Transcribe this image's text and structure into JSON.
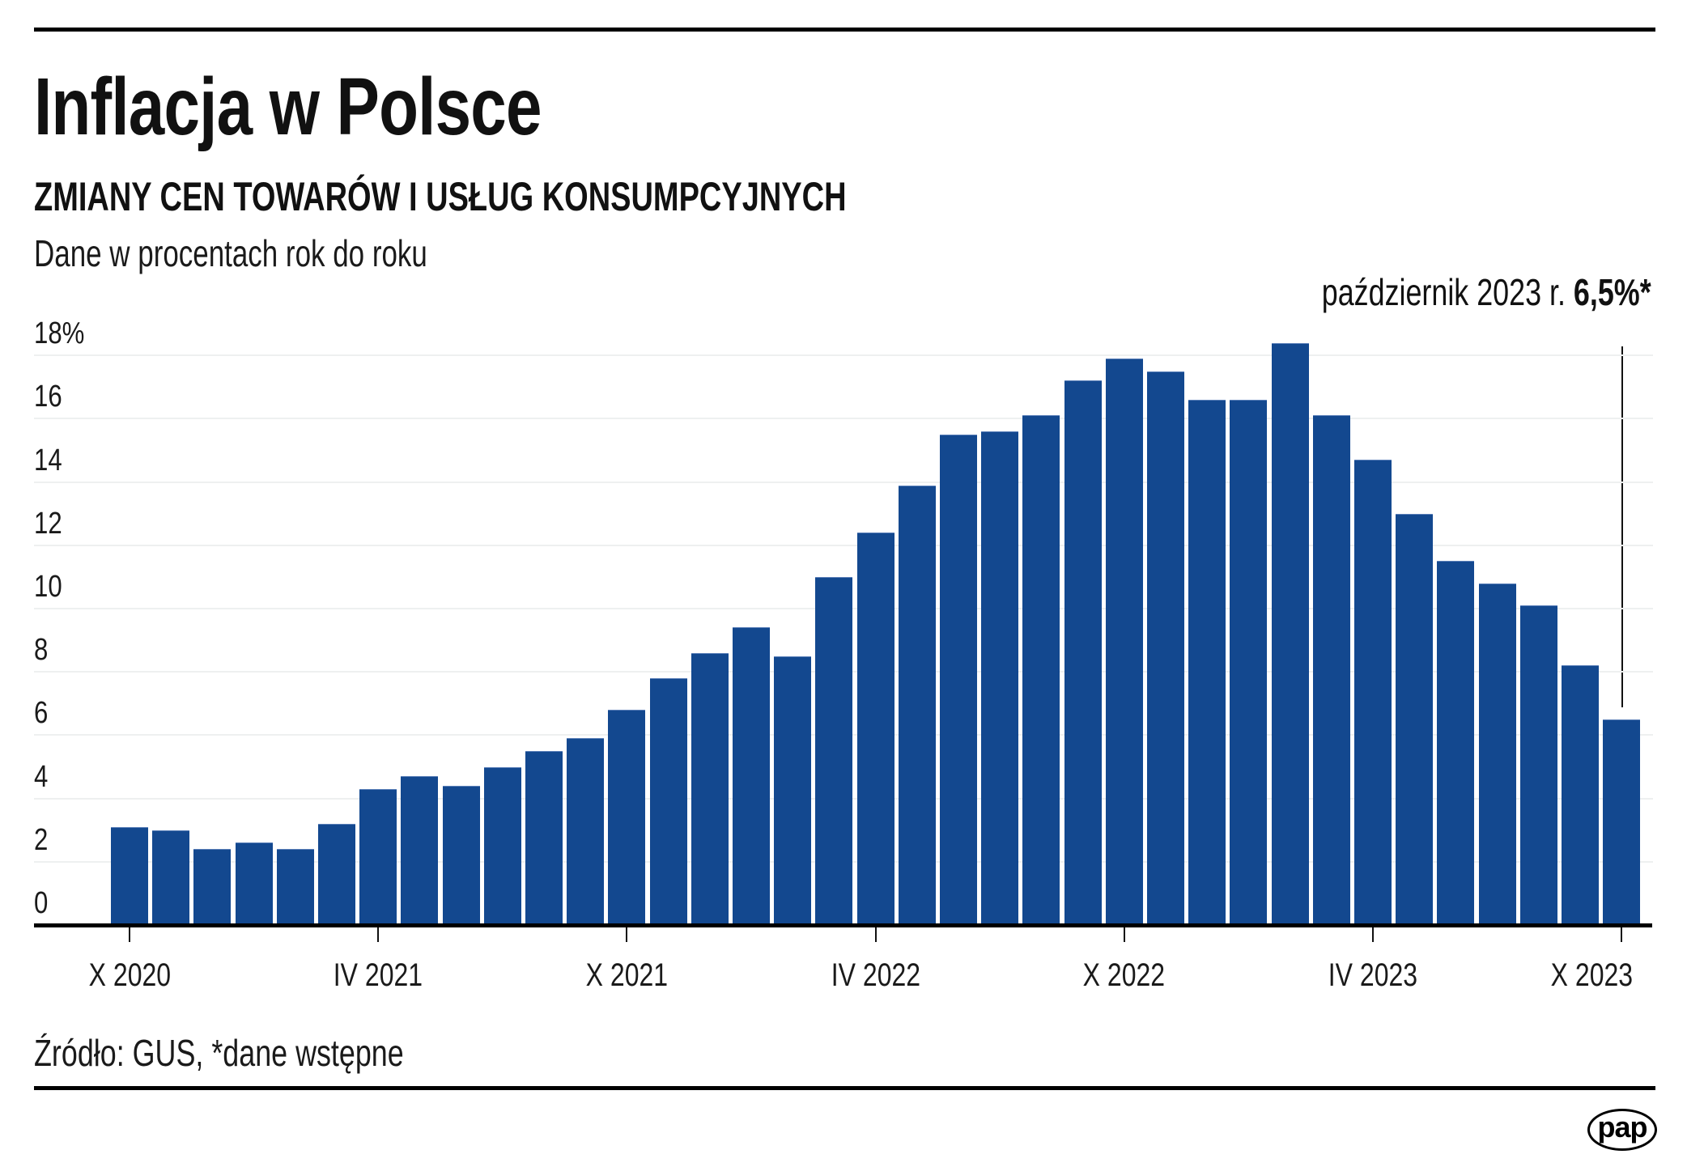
{
  "header": {
    "title": "Inflacja w Polsce",
    "subtitle": "ZMIANY CEN TOWARÓW I USŁUG KONSUMPCYJNYCH",
    "description": "Dane w procentach rok do roku"
  },
  "annotation": {
    "label": "październik 2023 r. ",
    "value": "6,5%*"
  },
  "footer": {
    "source": "Źródło: GUS, *dane wstępne",
    "logo": "pap"
  },
  "colors": {
    "bar": "#13488f",
    "grid": "#eef0f0",
    "axis": "#000000"
  },
  "chart_data": {
    "type": "bar",
    "title": "Inflacja w Polsce",
    "subtitle": "ZMIANY CEN TOWARÓW I USŁUG KONSUMPCYJNYCH",
    "ylabel": "Dane w procentach rok do roku",
    "xlabel": "",
    "ylim": [
      0,
      18
    ],
    "yticks": [
      0,
      2,
      4,
      6,
      8,
      10,
      12,
      14,
      16,
      18
    ],
    "ytick_labels": [
      "0",
      "2",
      "4",
      "6",
      "8",
      "10",
      "12",
      "14",
      "16",
      "18%"
    ],
    "grid": true,
    "xtick_labels": [
      "X 2020",
      "IV 2021",
      "X 2021",
      "IV 2022",
      "X 2022",
      "IV 2023",
      "X 2023"
    ],
    "xtick_indices": [
      0,
      6,
      12,
      18,
      24,
      30,
      36
    ],
    "categories": [
      "X 2020",
      "XI 2020",
      "XII 2020",
      "I 2021",
      "II 2021",
      "III 2021",
      "IV 2021",
      "V 2021",
      "VI 2021",
      "VII 2021",
      "VIII 2021",
      "IX 2021",
      "X 2021",
      "XI 2021",
      "XII 2021",
      "I 2022",
      "II 2022",
      "III 2022",
      "IV 2022",
      "V 2022",
      "VI 2022",
      "VII 2022",
      "VIII 2022",
      "IX 2022",
      "X 2022",
      "XI 2022",
      "XII 2022",
      "I 2023",
      "II 2023",
      "III 2023",
      "IV 2023",
      "V 2023",
      "VI 2023",
      "VII 2023",
      "VIII 2023",
      "IX 2023",
      "X 2023"
    ],
    "values": [
      3.1,
      3.0,
      2.4,
      2.6,
      2.4,
      3.2,
      4.3,
      4.7,
      4.4,
      5.0,
      5.5,
      5.9,
      6.8,
      7.8,
      8.6,
      9.4,
      8.5,
      11.0,
      12.4,
      13.9,
      15.5,
      15.6,
      16.1,
      17.2,
      17.9,
      17.5,
      16.6,
      16.6,
      18.4,
      16.1,
      14.7,
      13.0,
      11.5,
      10.8,
      10.1,
      8.2,
      6.5
    ],
    "annotations": [
      {
        "category": "X 2023",
        "text": "październik 2023 r. 6,5%*"
      }
    ],
    "source": "Źródło: GUS, *dane wstępne"
  }
}
